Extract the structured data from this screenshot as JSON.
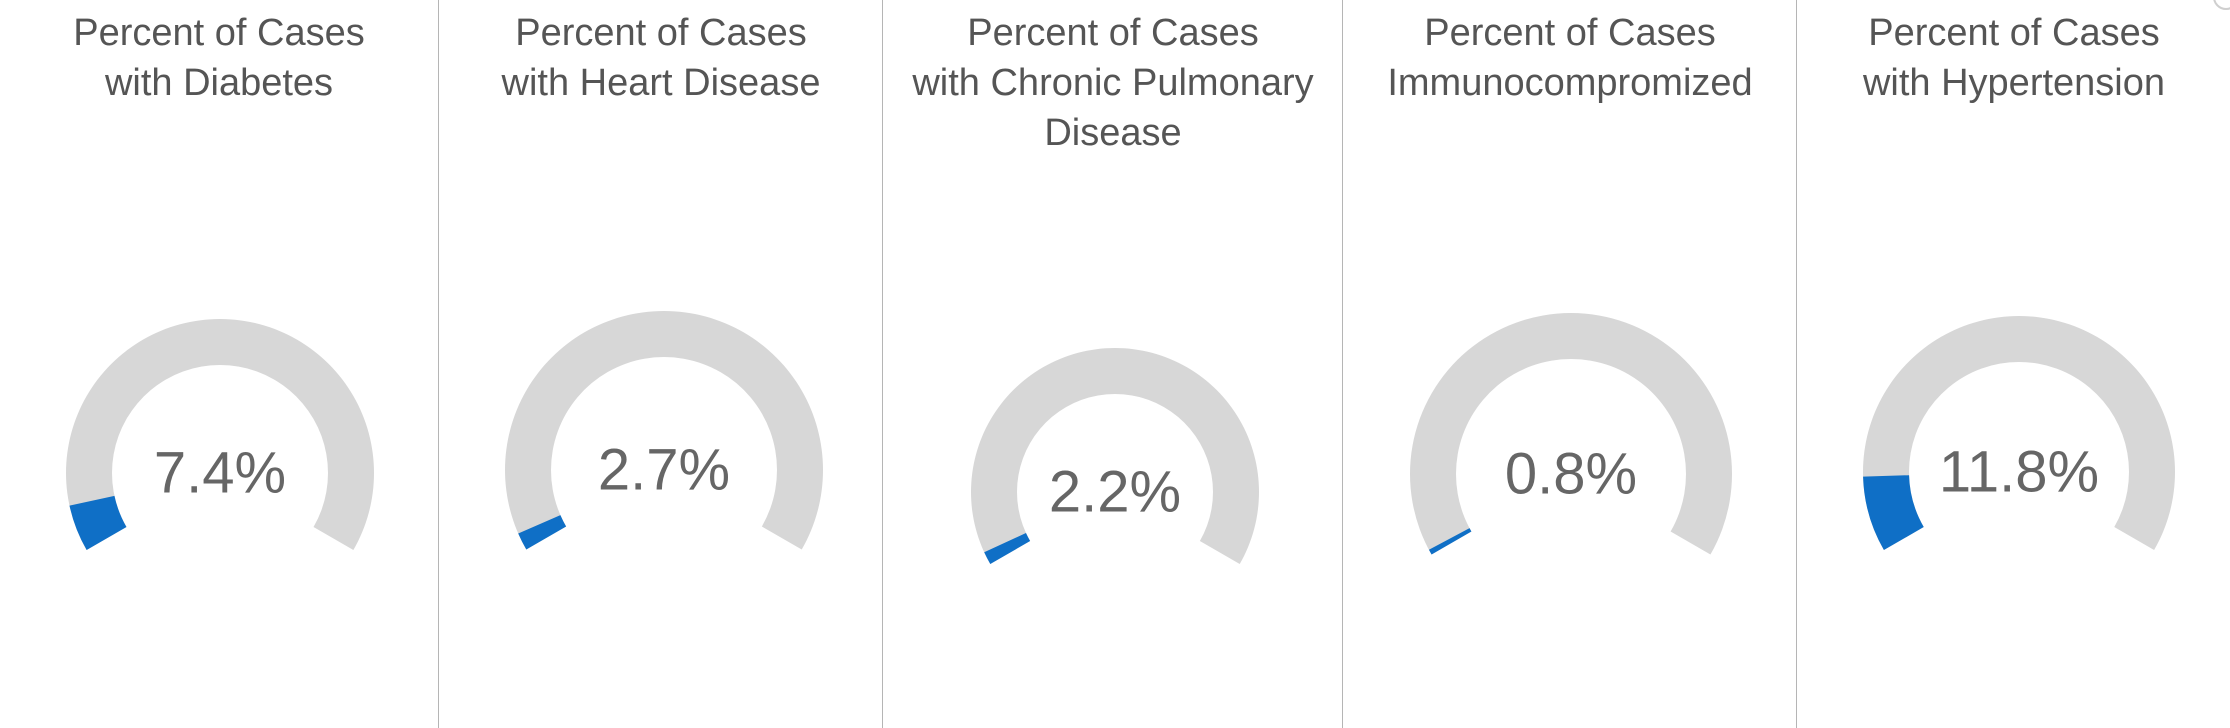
{
  "chart_data": [
    {
      "type": "gauge",
      "title": "Percent of Cases\nwith Diabetes",
      "value": 7.4,
      "value_label": "7.4%",
      "range": [
        0,
        100
      ],
      "colors": {
        "track": "#d7d7d7",
        "fill": "#0f6fc6",
        "text": "#666666"
      }
    },
    {
      "type": "gauge",
      "title": "Percent of Cases\nwith Heart Disease",
      "value": 2.7,
      "value_label": "2.7%",
      "range": [
        0,
        100
      ],
      "colors": {
        "track": "#d7d7d7",
        "fill": "#0f6fc6",
        "text": "#666666"
      }
    },
    {
      "type": "gauge",
      "title": "Percent of Cases\nwith Chronic Pulmonary\nDisease",
      "value": 2.2,
      "value_label": "2.2%",
      "range": [
        0,
        100
      ],
      "colors": {
        "track": "#d7d7d7",
        "fill": "#0f6fc6",
        "text": "#666666"
      }
    },
    {
      "type": "gauge",
      "title": "Percent of Cases\nImmunocompromized",
      "value": 0.8,
      "value_label": "0.8%",
      "range": [
        0,
        100
      ],
      "colors": {
        "track": "#d7d7d7",
        "fill": "#0f6fc6",
        "text": "#666666"
      }
    },
    {
      "type": "gauge",
      "title": "Percent of Cases\nwith Hypertension",
      "value": 11.8,
      "value_label": "11.8%",
      "range": [
        0,
        100
      ],
      "colors": {
        "track": "#d7d7d7",
        "fill": "#0f6fc6",
        "text": "#666666"
      }
    }
  ]
}
